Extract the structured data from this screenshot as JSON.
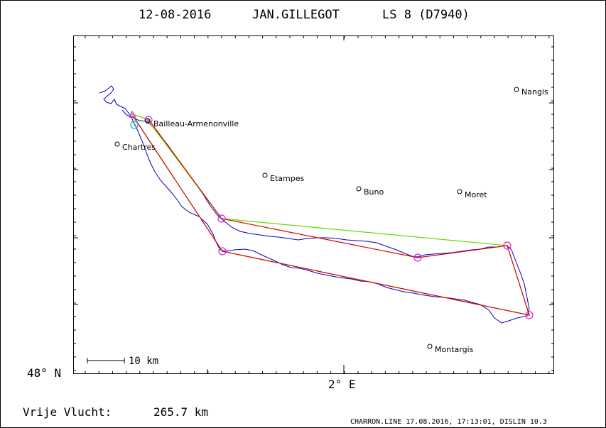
{
  "header": {
    "date": "12-08-2016",
    "pilot": "JAN.GILLEGOT",
    "aircraft": "LS 8 (D7940)"
  },
  "axes": {
    "y_label": "48° N",
    "x_label": "2° E"
  },
  "scale_bar": {
    "label": "10 km"
  },
  "towns": [
    {
      "name": "Nangis",
      "lon": 3.01,
      "lat": 48.56
    },
    {
      "name": "Bailleau-Armenonville",
      "lon": 1.64,
      "lat": 48.52
    },
    {
      "name": "Chartres",
      "lon": 1.49,
      "lat": 48.45
    },
    {
      "name": "Etampes",
      "lon": 2.16,
      "lat": 48.43
    },
    {
      "name": "Buno",
      "lon": 2.39,
      "lat": 48.38
    },
    {
      "name": "Moret",
      "lon": 2.81,
      "lat": 48.37
    },
    {
      "name": "Montargis",
      "lon": 2.73,
      "lat": 48.0
    }
  ],
  "turnpoints": [
    {
      "lon": 1.64,
      "lat": 48.53
    },
    {
      "lon": 1.98,
      "lat": 48.31
    },
    {
      "lon": 1.99,
      "lat": 48.19
    },
    {
      "lon": 3.04,
      "lat": 48.04
    },
    {
      "lon": 2.95,
      "lat": 48.22
    },
    {
      "lon": 2.62,
      "lat": 48.17
    }
  ],
  "footer": {
    "free_flight_label": "Vrije Vlucht:",
    "free_flight_value": "265.7 km",
    "credit": "CHARRON.LINE 17.08.2016, 17:13:01, DISLIN 10.3"
  },
  "colors": {
    "track": "#0000cc",
    "task": "#dd0000",
    "free_flight": "#66dd00",
    "turnpoint": "#dd22dd",
    "start_circle": "#00bbbb",
    "frame": "#000000"
  }
}
